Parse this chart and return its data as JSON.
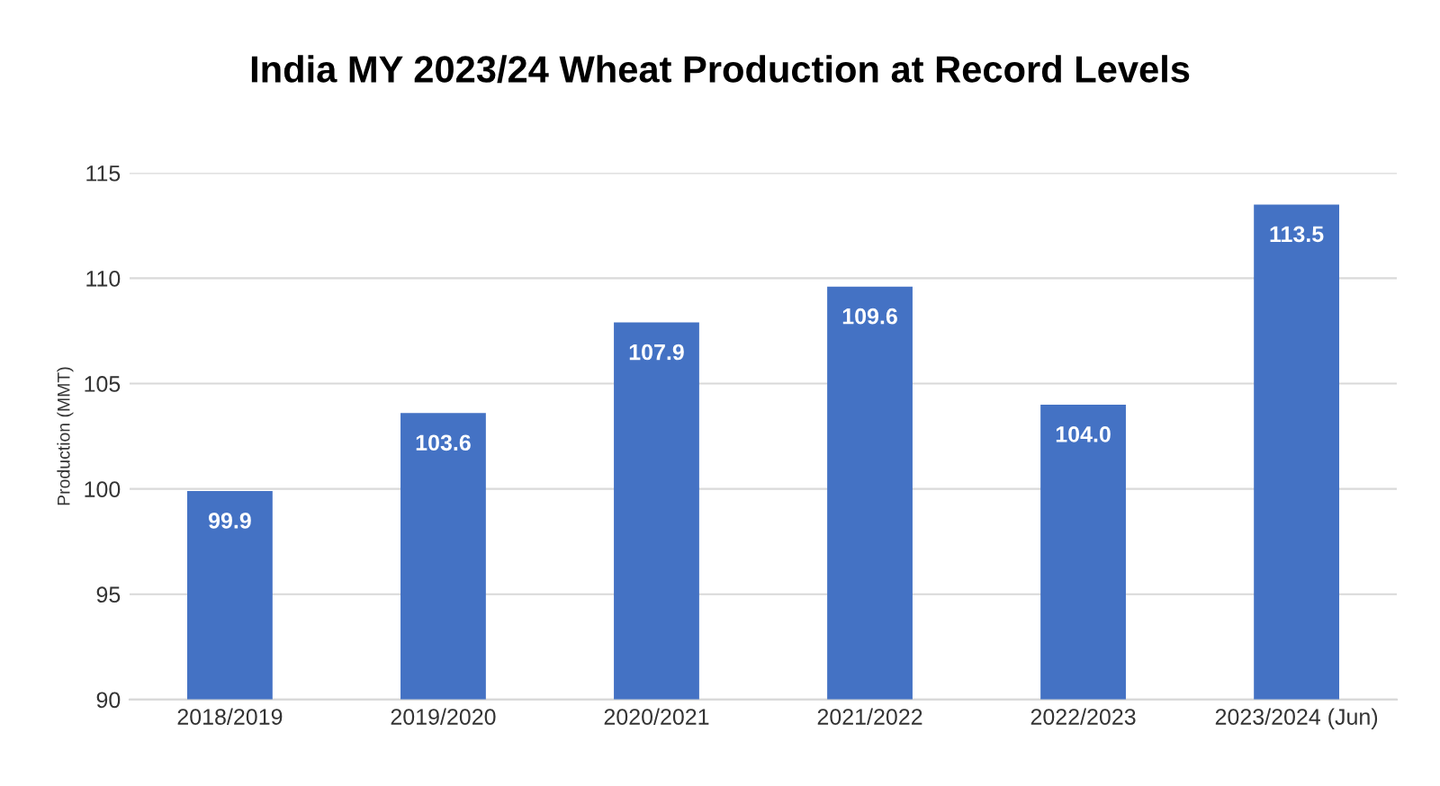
{
  "chart_data": {
    "type": "bar",
    "title": "India MY 2023/24 Wheat Production at Record Levels",
    "ylabel": "Production (MMT)",
    "categories": [
      "2018/2019",
      "2019/2020",
      "2020/2021",
      "2021/2022",
      "2022/2023",
      "2023/2024 (Jun)"
    ],
    "values": [
      99.9,
      103.6,
      107.9,
      109.6,
      104.0,
      113.5
    ],
    "value_labels": [
      "99.9",
      "103.6",
      "107.9",
      "109.6",
      "104.0",
      "113.5"
    ],
    "color": "#4472c4",
    "ylim": [
      90,
      115
    ],
    "yticks": [
      90,
      95,
      100,
      105,
      110,
      115
    ],
    "grid": "y"
  }
}
